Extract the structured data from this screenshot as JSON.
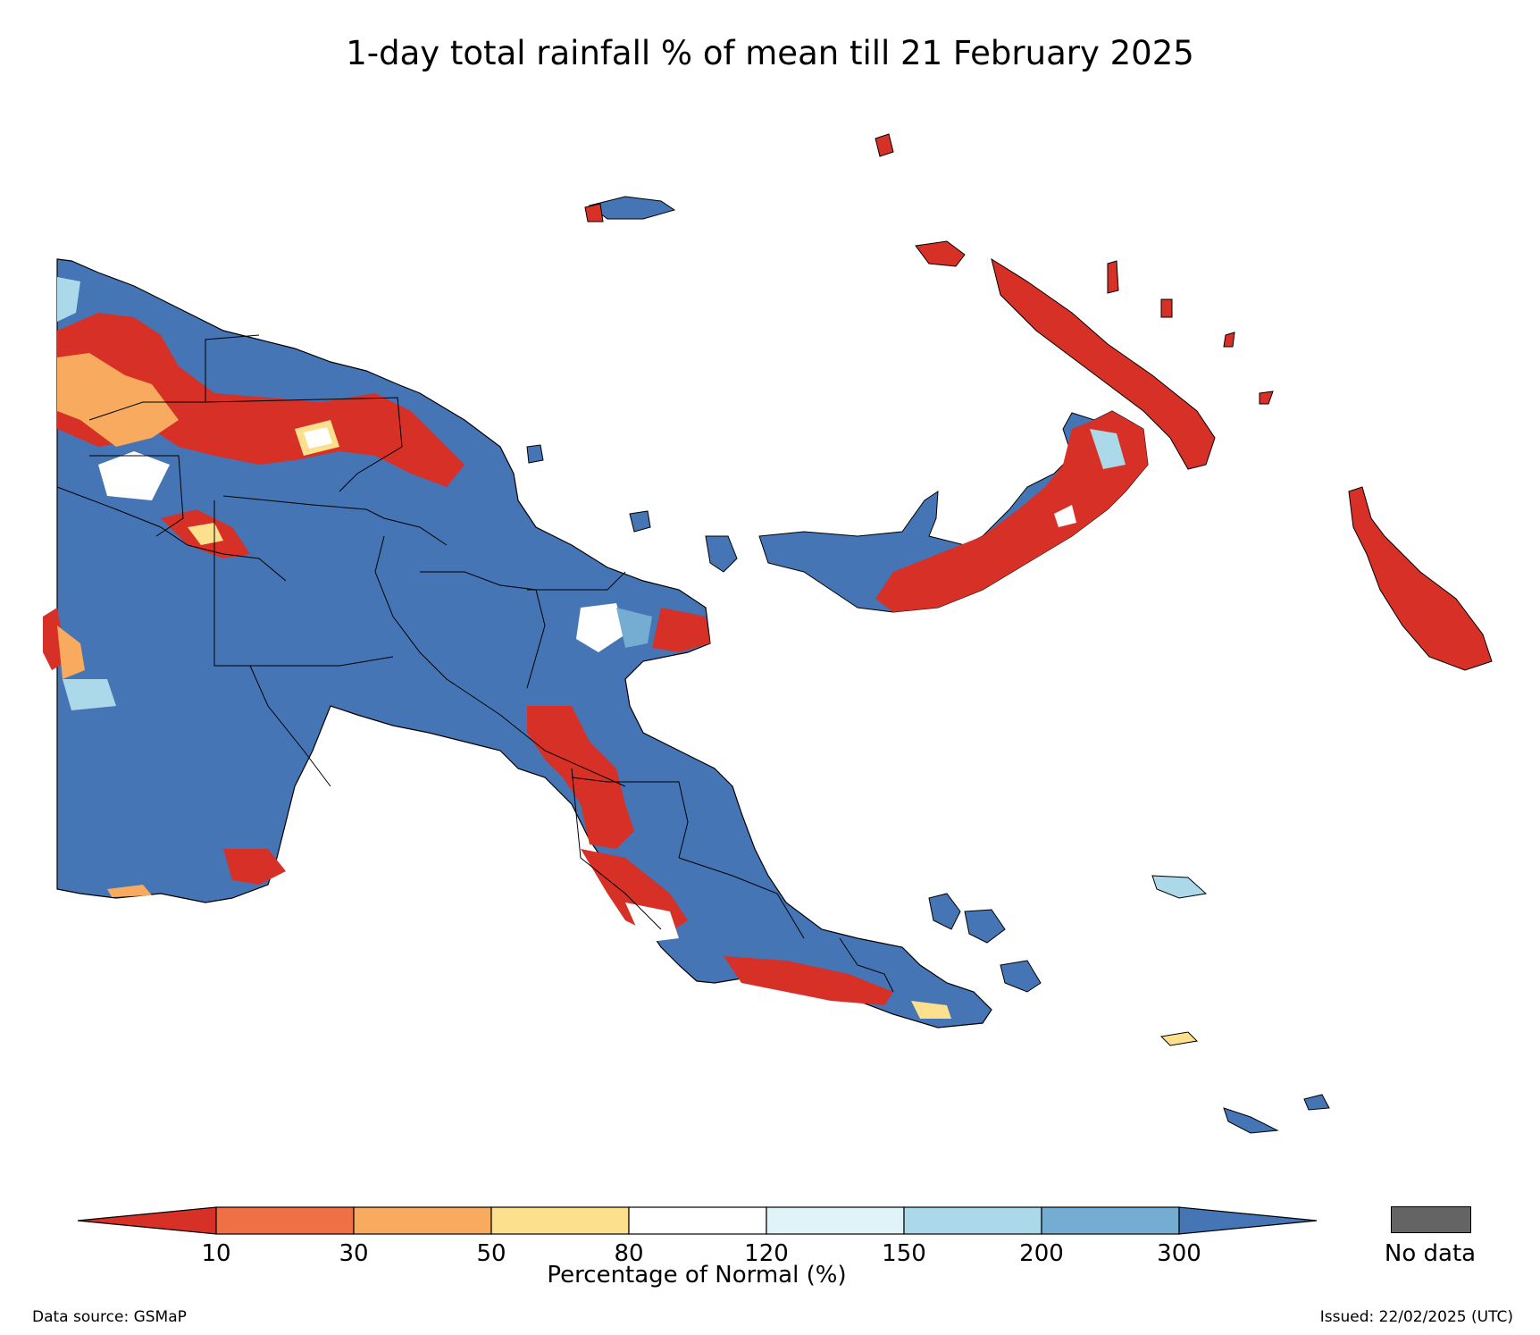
{
  "title": "1-day total rainfall % of mean till 21 February 2025",
  "legend": {
    "ticks": [
      "10",
      "30",
      "50",
      "80",
      "120",
      "150",
      "200",
      "300"
    ],
    "title": "Percentage of Normal (%)",
    "colors": [
      "#d73027",
      "#f07046",
      "#f8aa5e",
      "#fde08e",
      "#ffffff",
      "#e0f3f8",
      "#abd9e9",
      "#74add1",
      "#4575b4"
    ],
    "nodata_label": "No data",
    "nodata_color": "#646464"
  },
  "footer": {
    "source": "Data source: GSMaP",
    "issued": "Issued: 22/02/2025 (UTC)"
  }
}
